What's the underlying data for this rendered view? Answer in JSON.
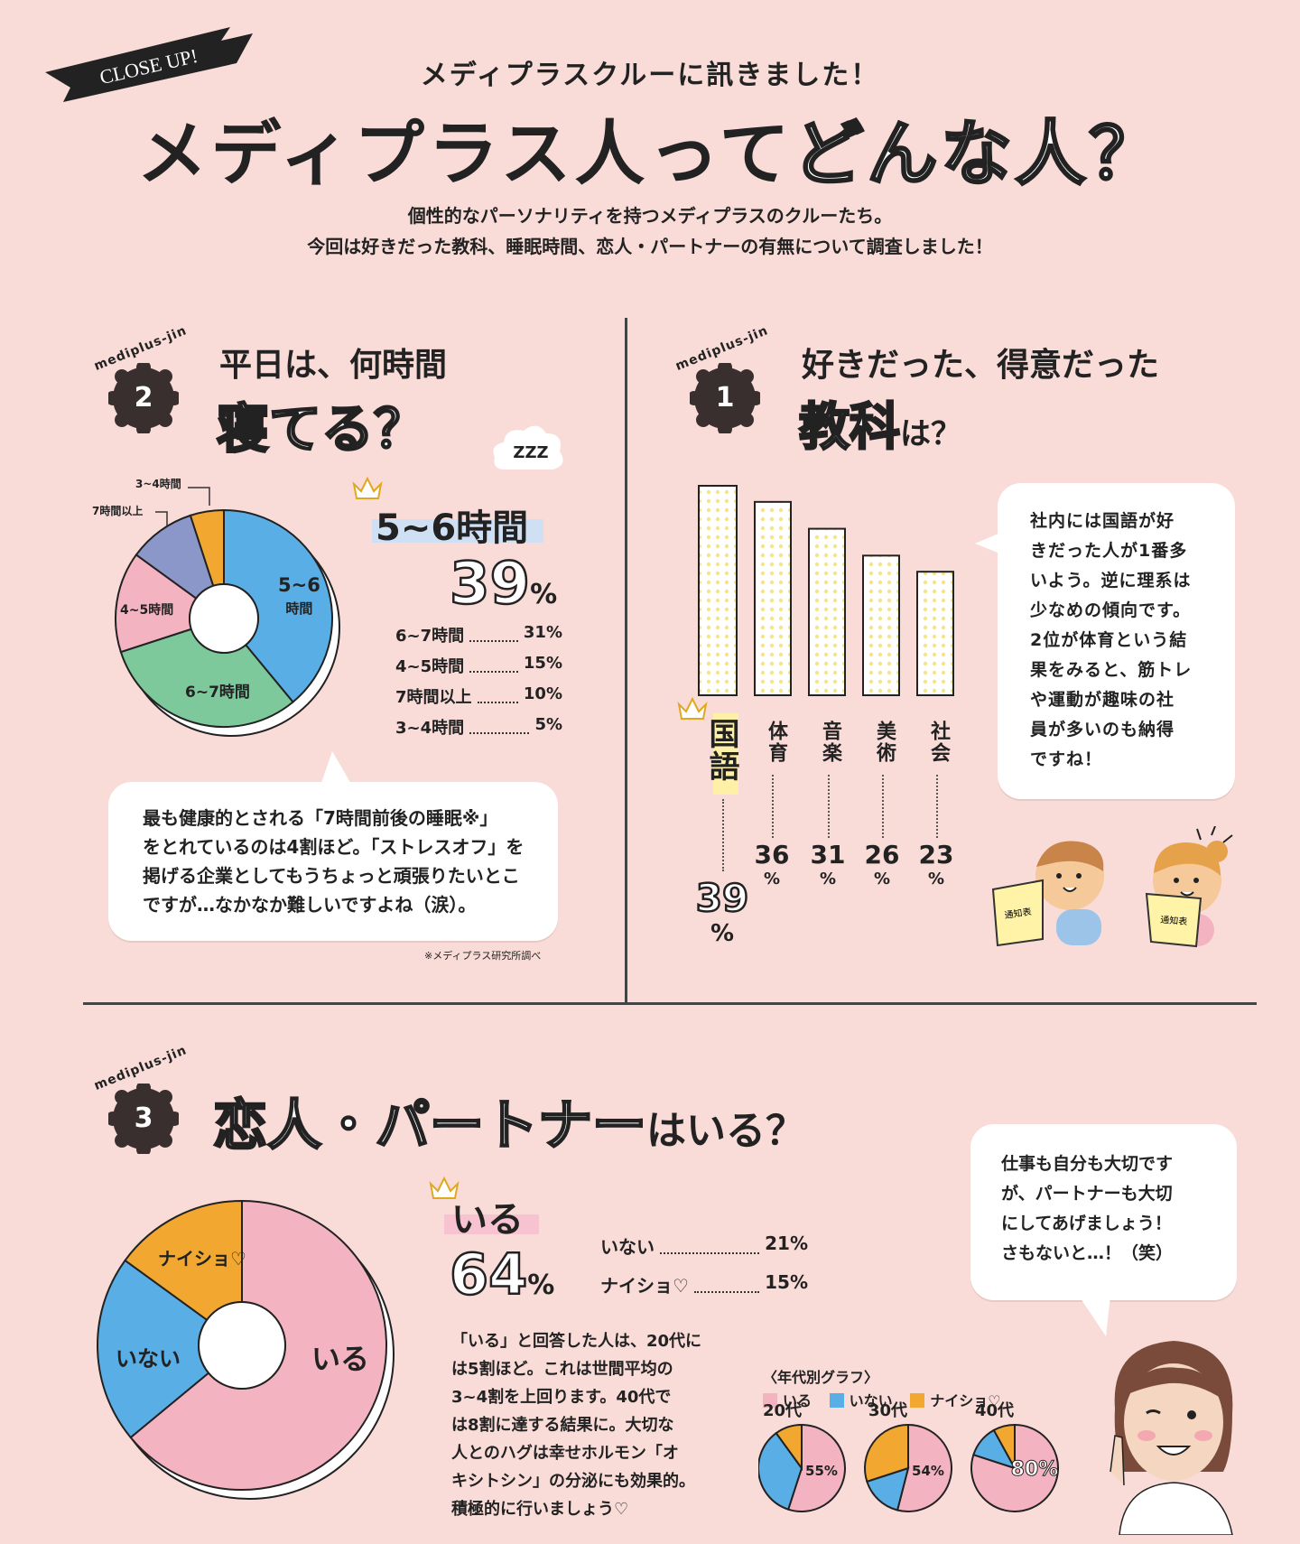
{
  "banner": {
    "text": "CLOSE UP!"
  },
  "header": {
    "subtitle": "メディプラスクルーに訊きました！",
    "title_dark": "メディプラス人って",
    "title_light": "どんな人？",
    "intro_line1": "個性的なパーソナリティを持つメディプラスのクルーたち。",
    "intro_line2": "今回は好きだった教科、睡眠時間、恋人・パートナーの有無について調査しました！"
  },
  "badge_tag": "mediplus-jin",
  "section1": {
    "number": "1",
    "head_small": "好きだった、得意だった",
    "head_big": "教科",
    "head_suffix": "は？",
    "bubble": [
      "社内には国語が好",
      "きだった人が1番多",
      "いよう。逆に理系は",
      "少なめの傾向です。",
      "2位が体育という結",
      "果をみると、筋トレ",
      "や運動が趣味の社",
      "員が多いのも納得",
      "ですね！"
    ],
    "winner_pct": "39",
    "pct_unit": "%"
  },
  "section2": {
    "number": "2",
    "head_small": "平日は、何時間",
    "head_big": "寝てる？",
    "winner_label": "5~6時間",
    "winner_pct": "39",
    "pct_unit": "%",
    "rows": [
      {
        "label": "6~7時間",
        "value": "31%"
      },
      {
        "label": "4~5時間",
        "value": "15%"
      },
      {
        "label": "7時間以上",
        "value": "10%"
      },
      {
        "label": "3~4時間",
        "value": "5%"
      }
    ],
    "slice_labels": {
      "s56a": "5~6",
      "s56b": "時間",
      "s67": "6~7時間",
      "s45": "4~5時間",
      "s7": "7時間以上",
      "s34": "3~4時間"
    },
    "bubble": [
      "最も健康的とされる「7時間前後の睡眠※」",
      "をとれているのは4割ほど。「ストレスオフ」を",
      "掲げる企業としてもうちょっと頑張りたいとこ",
      "ですが…なかなか難しいですよね（涙）。"
    ],
    "note": "※メディプラス研究所調べ",
    "zzz": "ZZZ"
  },
  "section3": {
    "number": "3",
    "head": "恋人・パートナー",
    "head_suffix": "はいる？",
    "winner_label": "いる",
    "winner_pct": "64",
    "pct_unit": "%",
    "rows": [
      {
        "label": "いない",
        "value": "21%"
      },
      {
        "label": "ナイショ♡",
        "value": "15%"
      }
    ],
    "slice_labels": {
      "iru": "いる",
      "inai": "いない",
      "naisho": "ナイショ♡"
    },
    "body": [
      "「いる」と回答した人は、20代に",
      "は5割ほど。これは世間平均の",
      "3~4割を上回ります。40代で",
      "は8割に達する結果に。大切な",
      "人とのハグは幸せホルモン「オ",
      "キシトシン」の分泌にも効果的。",
      "積極的に行いましょう♡"
    ],
    "bubble": [
      "仕事も自分も大切です",
      "が、パートナーも大切",
      "にしてあげましょう！",
      "さもないと…！（笑）"
    ],
    "age_title": "〈年代別グラフ〉",
    "legend": [
      "いる",
      "いない",
      "ナイショ♡"
    ],
    "ages": [
      {
        "label": "20代",
        "pct": "55%"
      },
      {
        "label": "30代",
        "pct": "54%"
      },
      {
        "label": "40代",
        "pct": "80%"
      }
    ]
  },
  "book_text": "通知表",
  "colors": {
    "bg": "#f9dcd8",
    "blue": "#5aaee6",
    "green": "#7dc99b",
    "pink": "#f4b3c0",
    "purple": "#8c97c9",
    "orange": "#f2a830",
    "yellow": "#fff3b0",
    "dark": "#222222"
  },
  "chart_data": [
    {
      "type": "bar",
      "categories": [
        "国語",
        "体育",
        "音楽",
        "美術",
        "社会"
      ],
      "values": [
        39,
        36,
        31,
        26,
        23
      ],
      "value_labels": [
        "39",
        "36",
        "31",
        "26",
        "23"
      ],
      "unit": "%"
    },
    {
      "type": "pie",
      "categories": [
        "5~6時間",
        "6~7時間",
        "4~5時間",
        "7時間以上",
        "3~4時間"
      ],
      "values": [
        39,
        31,
        15,
        10,
        5
      ],
      "unit": "%"
    },
    {
      "type": "pie",
      "categories": [
        "いる",
        "いない",
        "ナイショ♡"
      ],
      "values": [
        64,
        21,
        15
      ],
      "unit": "%"
    },
    {
      "type": "pie",
      "title": "20代",
      "categories": [
        "いる",
        "いない",
        "ナイショ♡"
      ],
      "values": [
        55,
        35,
        10
      ]
    },
    {
      "type": "pie",
      "title": "30代",
      "categories": [
        "いる",
        "いない",
        "ナイショ♡"
      ],
      "values": [
        54,
        16,
        30
      ]
    },
    {
      "type": "pie",
      "title": "40代",
      "categories": [
        "いる",
        "いない",
        "ナイショ♡"
      ],
      "values": [
        80,
        12,
        8
      ]
    }
  ]
}
